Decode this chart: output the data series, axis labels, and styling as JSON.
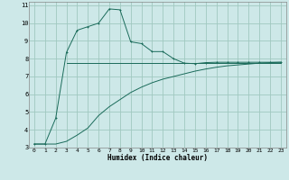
{
  "xlabel": "Humidex (Indice chaleur)",
  "bg_color": "#cde8e8",
  "grid_color": "#a0c8c0",
  "line_color": "#1a6b5a",
  "xlim": [
    -0.5,
    23.5
  ],
  "ylim": [
    3,
    11.2
  ],
  "yticks": [
    3,
    4,
    5,
    6,
    7,
    8,
    9,
    10,
    11
  ],
  "xticks": [
    0,
    1,
    2,
    3,
    4,
    5,
    6,
    7,
    8,
    9,
    10,
    11,
    12,
    13,
    14,
    15,
    16,
    17,
    18,
    19,
    20,
    21,
    22,
    23
  ],
  "line1_x": [
    0,
    1,
    2,
    3,
    4,
    5,
    6,
    7,
    8,
    9,
    10,
    11,
    12,
    13,
    14,
    15,
    16,
    17,
    18,
    19,
    20,
    21,
    22,
    23
  ],
  "line1_y": [
    3.2,
    3.2,
    4.65,
    8.35,
    9.6,
    9.8,
    10.0,
    10.8,
    10.75,
    8.95,
    8.85,
    8.4,
    8.4,
    8.0,
    7.75,
    7.72,
    7.78,
    7.8,
    7.8,
    7.8,
    7.8,
    7.8,
    7.8,
    7.8
  ],
  "line2_x": [
    3,
    23
  ],
  "line2_y": [
    7.75,
    7.75
  ],
  "line3_x": [
    0,
    1,
    2,
    3,
    4,
    5,
    6,
    7,
    8,
    9,
    10,
    11,
    12,
    13,
    14,
    15,
    16,
    17,
    18,
    19,
    20,
    21,
    22,
    23
  ],
  "line3_y": [
    3.2,
    3.2,
    3.2,
    3.35,
    3.7,
    4.1,
    4.8,
    5.3,
    5.7,
    6.1,
    6.4,
    6.65,
    6.85,
    7.0,
    7.15,
    7.3,
    7.42,
    7.52,
    7.6,
    7.65,
    7.7,
    7.75,
    7.78,
    7.8
  ]
}
